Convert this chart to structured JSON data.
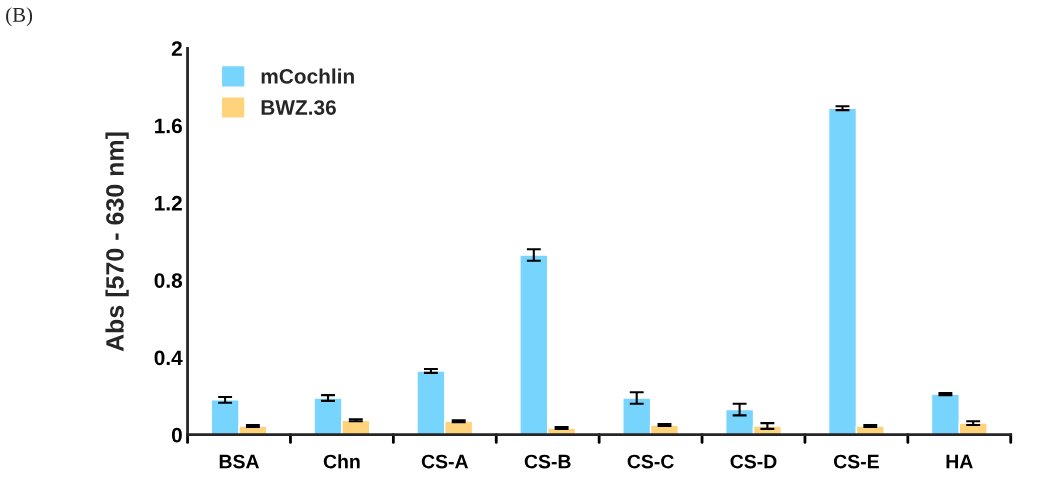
{
  "chart_data": {
    "type": "bar",
    "ylabel": "Abs [570 - 630 nm]",
    "annotations": [
      "(B)"
    ],
    "categories": [
      "BSA",
      "Chn",
      "CS-A",
      "CS-B",
      "CS-C",
      "CS-D",
      "CS-E",
      "HA"
    ],
    "series": [
      {
        "name": "mCochlin",
        "color": "#77d4fd",
        "values": [
          0.18,
          0.19,
          0.33,
          0.93,
          0.19,
          0.13,
          1.69,
          0.21
        ],
        "errors": [
          0.015,
          0.015,
          0.01,
          0.03,
          0.03,
          0.03,
          0.01,
          0.005
        ]
      },
      {
        "name": "BWZ.36",
        "color": "#ffd37b",
        "values": [
          0.045,
          0.075,
          0.07,
          0.035,
          0.05,
          0.045,
          0.045,
          0.06
        ],
        "errors": [
          0.005,
          0.005,
          0.005,
          0.005,
          0.005,
          0.015,
          0.005,
          0.01
        ]
      }
    ],
    "ylim": [
      0,
      2
    ],
    "yticks": [
      0,
      0.4,
      0.8,
      1.2,
      1.6,
      2
    ],
    "grid": false,
    "legend": "top left"
  }
}
